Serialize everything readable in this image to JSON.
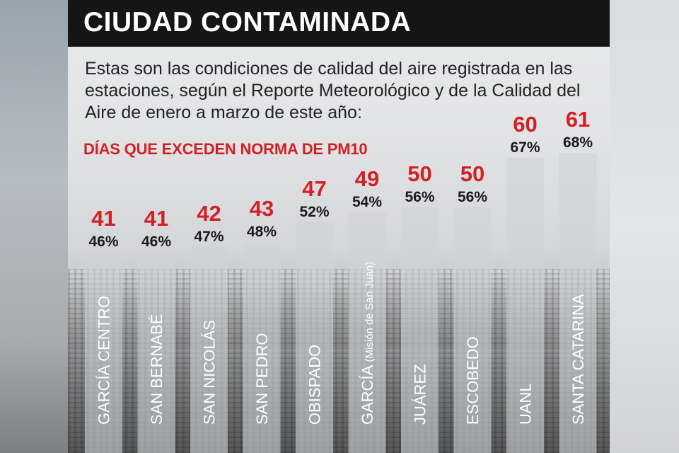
{
  "header": {
    "title": "CIUDAD CONTAMINADA",
    "intro": "Estas son las condiciones de calidad del aire registrada en las estaciones, según el Reporte Meteorológico y de la Calidad del Aire de enero a marzo de este año:"
  },
  "chart_data": {
    "type": "bar",
    "title": "DÍAS QUE EXCEDEN NORMA DE PM10",
    "categories": [
      "GARCÍA CENTRO",
      "SAN BERNABÉ",
      "SAN NICOLÁS",
      "SAN PEDRO",
      "OBISPADO",
      "GARCÍA (Misión de San Juan)",
      "JUÁREZ",
      "ESCOBEDO",
      "UANL",
      "SANTA CATARINA"
    ],
    "category_main": [
      "GARCÍA CENTRO",
      "SAN BERNABÉ",
      "SAN NICOLÁS",
      "SAN PEDRO",
      "OBISPADO",
      "GARCÍA",
      "JUÁREZ",
      "ESCOBEDO",
      "UANL",
      "SANTA CATARINA"
    ],
    "category_sub": [
      "",
      "",
      "",
      "",
      "",
      " (Misión de San Juan)",
      "",
      "",
      "",
      ""
    ],
    "values": [
      41,
      41,
      42,
      43,
      47,
      49,
      50,
      50,
      60,
      61
    ],
    "percent_labels": [
      "46%",
      "46%",
      "47%",
      "48%",
      "52%",
      "54%",
      "56%",
      "56%",
      "67%",
      "68%"
    ],
    "percent_values": [
      46,
      46,
      47,
      48,
      52,
      54,
      56,
      56,
      67,
      68
    ],
    "colors": {
      "value_label": "#d32027",
      "percent_label": "#1a1a1a",
      "bar": "#cfd3d7",
      "category_label": "#ffffff"
    }
  }
}
